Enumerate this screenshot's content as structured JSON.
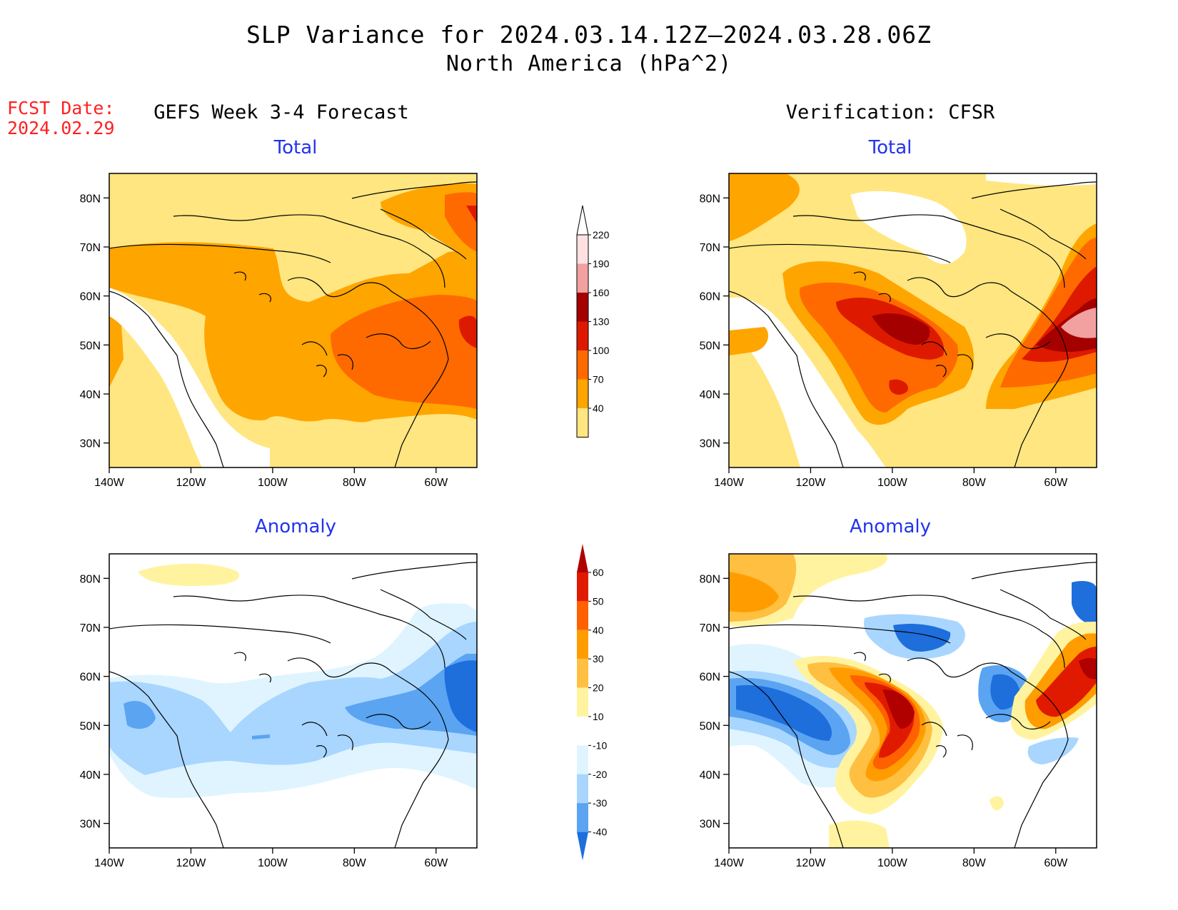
{
  "header": {
    "title": "SLP Variance for 2024.03.14.12Z—2024.03.28.06Z",
    "subtitle": "North America (hPa^2)",
    "fcst_label": "FCST Date:",
    "fcst_date": "2024.02.29",
    "left_column": "GEFS Week 3-4 Forecast",
    "right_column": "Verification: CFSR"
  },
  "panels": {
    "top_left": "Total",
    "top_right": "Total",
    "bottom_left": "Anomaly",
    "bottom_right": "Anomaly"
  },
  "axes": {
    "lat_ticks": [
      "80N",
      "70N",
      "60N",
      "50N",
      "40N",
      "30N"
    ],
    "lon_ticks": [
      "140W",
      "120W",
      "100W",
      "80W",
      "60W"
    ],
    "lat_range": [
      25,
      85
    ],
    "lon_range": [
      -140,
      -50
    ]
  },
  "total_scale": {
    "levels": [
      "220",
      "190",
      "160",
      "130",
      "100",
      "70",
      "40"
    ],
    "colors": [
      "#ffffff",
      "#ffe0e0",
      "#f2a0a0",
      "#a50000",
      "#dd1a00",
      "#ff6a00",
      "#ffa500",
      "#ffe680"
    ]
  },
  "anomaly_scale": {
    "levels": [
      "60",
      "50",
      "40",
      "30",
      "20",
      "10",
      "-10",
      "-20",
      "-30",
      "-40"
    ],
    "colors": [
      "#b00000",
      "#e01a00",
      "#ff6000",
      "#ff9d00",
      "#ffbf40",
      "#fff3a0",
      "#ffffff",
      "#dff4ff",
      "#a8d6ff",
      "#5aa4f2",
      "#1e6edc"
    ]
  }
}
